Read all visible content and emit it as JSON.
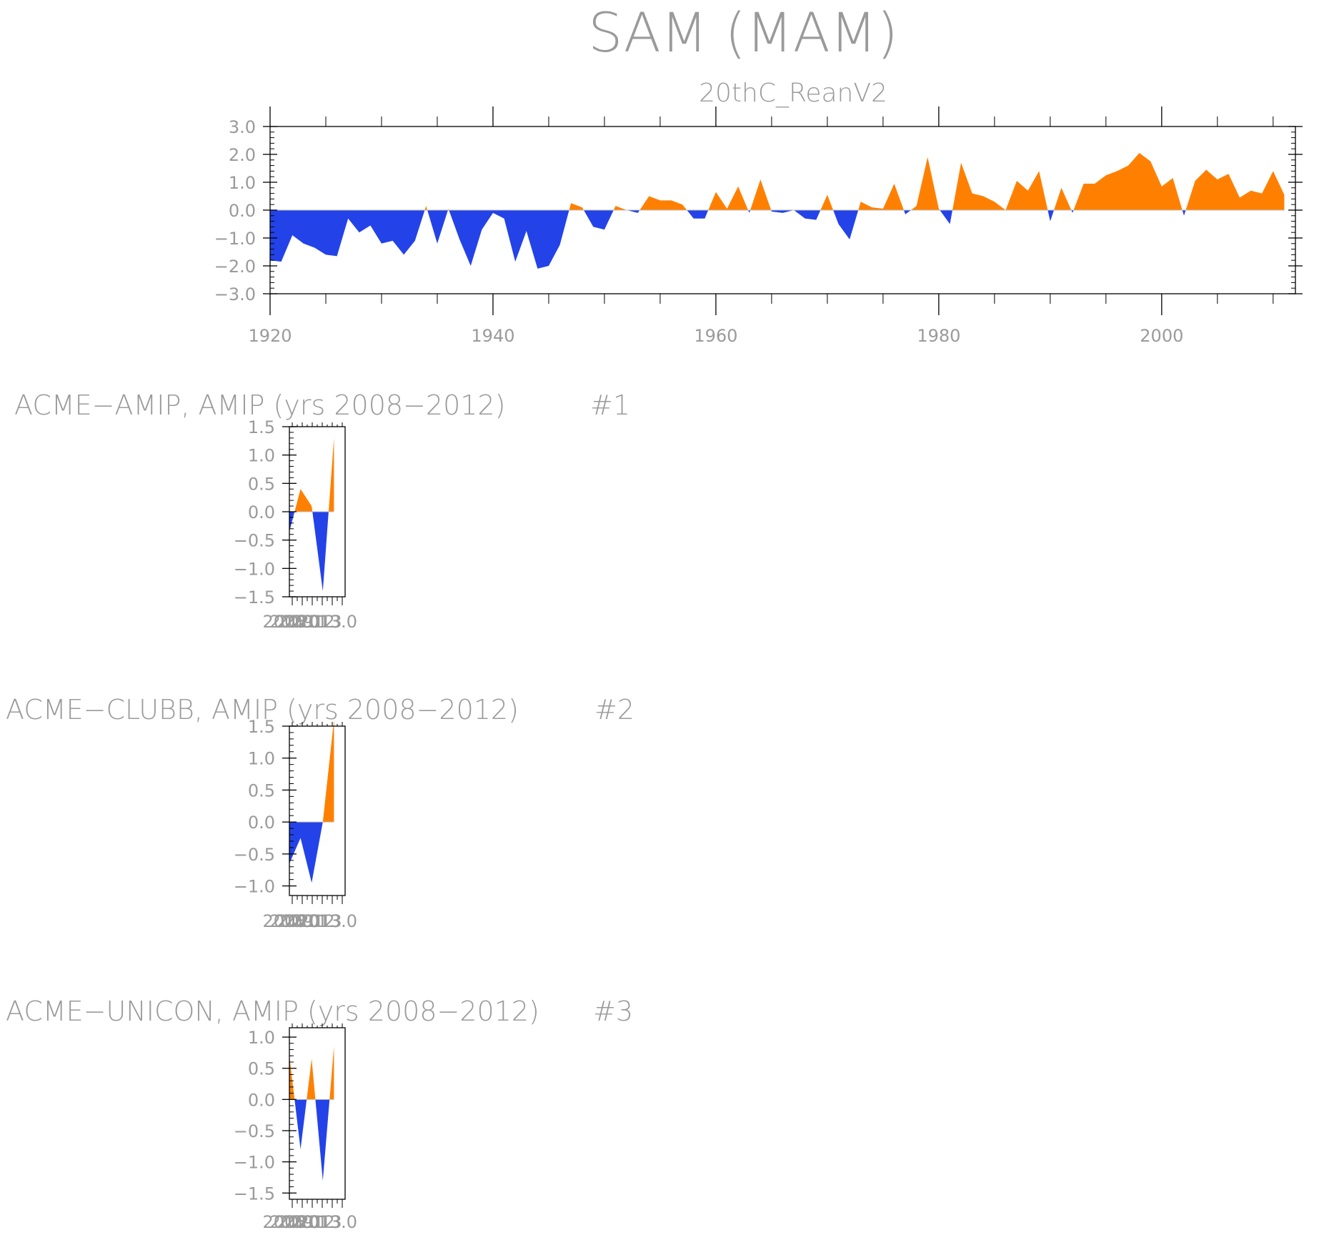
{
  "figure": {
    "title": "SAM (MAM)",
    "colors": {
      "positive": "#ff8000",
      "negative": "#2343e8",
      "axis": "#000000",
      "text": "#9a9a9a"
    }
  },
  "chart_data": [
    {
      "type": "area",
      "title": "20thC_ReanV2",
      "xlim": [
        1920,
        2012
      ],
      "ylim": [
        -3.0,
        3.0
      ],
      "xticks": [
        1920,
        1940,
        1960,
        1980,
        2000
      ],
      "xtick_labels": [
        "1920",
        "1940",
        "1960",
        "1980",
        "2000"
      ],
      "yticks": [
        -3.0,
        -2.0,
        -1.0,
        0.0,
        1.0,
        2.0,
        3.0
      ],
      "ytick_labels": [
        "−3.0",
        "−2.0",
        "−1.0",
        "0.0",
        "1.0",
        "2.0",
        "3.0"
      ],
      "fill_above_zero": "#ff8000",
      "fill_below_zero": "#2343e8",
      "x": [
        1920,
        1921,
        1922,
        1923,
        1924,
        1925,
        1926,
        1927,
        1928,
        1929,
        1930,
        1931,
        1932,
        1933,
        1934,
        1935,
        1936,
        1937,
        1938,
        1939,
        1940,
        1941,
        1942,
        1943,
        1944,
        1945,
        1946,
        1947,
        1948,
        1949,
        1950,
        1951,
        1952,
        1953,
        1954,
        1955,
        1956,
        1957,
        1958,
        1959,
        1960,
        1961,
        1962,
        1963,
        1964,
        1965,
        1966,
        1967,
        1968,
        1969,
        1970,
        1971,
        1972,
        1973,
        1974,
        1975,
        1976,
        1977,
        1978,
        1979,
        1980,
        1981,
        1982,
        1983,
        1984,
        1985,
        1986,
        1987,
        1988,
        1989,
        1990,
        1991,
        1992,
        1993,
        1994,
        1995,
        1996,
        1997,
        1998,
        1999,
        2000,
        2001,
        2002,
        2003,
        2004,
        2005,
        2006,
        2007,
        2008,
        2009,
        2010,
        2011
      ],
      "values": [
        -1.8,
        -1.85,
        -0.9,
        -1.2,
        -1.35,
        -1.6,
        -1.65,
        -0.3,
        -0.8,
        -0.55,
        -1.2,
        -1.1,
        -1.6,
        -1.1,
        0.15,
        -1.2,
        0.05,
        -1.05,
        -2.0,
        -0.7,
        -0.1,
        -0.3,
        -1.85,
        -0.75,
        -2.1,
        -2.0,
        -1.25,
        0.25,
        0.1,
        -0.6,
        -0.7,
        0.15,
        0.0,
        -0.1,
        0.5,
        0.35,
        0.35,
        0.2,
        -0.3,
        -0.3,
        0.65,
        0.05,
        0.85,
        -0.1,
        1.1,
        -0.05,
        -0.1,
        0.0,
        -0.3,
        -0.35,
        0.55,
        -0.5,
        -1.05,
        0.3,
        0.1,
        0.05,
        0.95,
        -0.15,
        0.15,
        1.9,
        0.05,
        -0.5,
        1.7,
        0.6,
        0.5,
        0.3,
        0.0,
        1.05,
        0.7,
        1.4,
        -0.4,
        0.8,
        -0.1,
        0.95,
        0.95,
        1.25,
        1.4,
        1.6,
        2.05,
        1.75,
        0.85,
        1.15,
        -0.2,
        1.05,
        1.45,
        1.1,
        1.3,
        0.45,
        0.7,
        0.6,
        1.4,
        0.55
      ]
    },
    {
      "type": "area",
      "title": "ACME−AMIP, AMIP (yrs 2008−2012)",
      "panel_label": "#1",
      "xlim": [
        2008,
        2013
      ],
      "ylim": [
        -1.5,
        1.5
      ],
      "yticks": [
        -1.5,
        -1.0,
        -0.5,
        0.0,
        0.5,
        1.0,
        1.5
      ],
      "ytick_labels": [
        "−1.5",
        "−1.0",
        "−0.5",
        "0.0",
        "0.5",
        "1.0",
        "1.5"
      ],
      "xtick_labels": [
        "2008",
        "2009",
        "2010",
        "2011",
        "2012",
        "2013",
        "2013.0"
      ],
      "fill_above_zero": "#ff8000",
      "fill_below_zero": "#2343e8",
      "x": [
        2008,
        2009,
        2010,
        2011,
        2012
      ],
      "values": [
        -0.35,
        0.4,
        0.1,
        -1.4,
        1.3
      ]
    },
    {
      "type": "area",
      "title": "ACME−CLUBB, AMIP (yrs 2008−2012)",
      "panel_label": "#2",
      "xlim": [
        2008,
        2013
      ],
      "ylim": [
        -1.15,
        1.5
      ],
      "yticks": [
        -1.0,
        -0.5,
        0.0,
        0.5,
        1.0,
        1.5
      ],
      "ytick_labels": [
        "−1.0",
        "−0.5",
        "0.0",
        "0.5",
        "1.0",
        "1.5"
      ],
      "xtick_labels": [
        "2008",
        "2009",
        "2010",
        "2011",
        "2012",
        "2013",
        "2013.0"
      ],
      "fill_above_zero": "#ff8000",
      "fill_below_zero": "#2343e8",
      "x": [
        2008,
        2009,
        2010,
        2011,
        2012
      ],
      "values": [
        -0.65,
        -0.25,
        -0.95,
        0.0,
        1.6
      ]
    },
    {
      "type": "area",
      "title": "ACME−UNICON, AMIP (yrs 2008−2012)",
      "panel_label": "#3",
      "xlim": [
        2008,
        2013
      ],
      "ylim": [
        -1.6,
        1.15
      ],
      "yticks": [
        -1.5,
        -1.0,
        -0.5,
        0.0,
        0.5,
        1.0
      ],
      "ytick_labels": [
        "−1.5",
        "−1.0",
        "−0.5",
        "0.0",
        "0.5",
        "1.0"
      ],
      "xtick_labels": [
        "2008",
        "2009",
        "2010",
        "2011",
        "2012",
        "2013",
        "2013.0"
      ],
      "fill_above_zero": "#ff8000",
      "fill_below_zero": "#2343e8",
      "x": [
        2008,
        2009,
        2010,
        2011,
        2012
      ],
      "values": [
        0.7,
        -0.8,
        0.65,
        -1.3,
        0.85
      ]
    }
  ]
}
